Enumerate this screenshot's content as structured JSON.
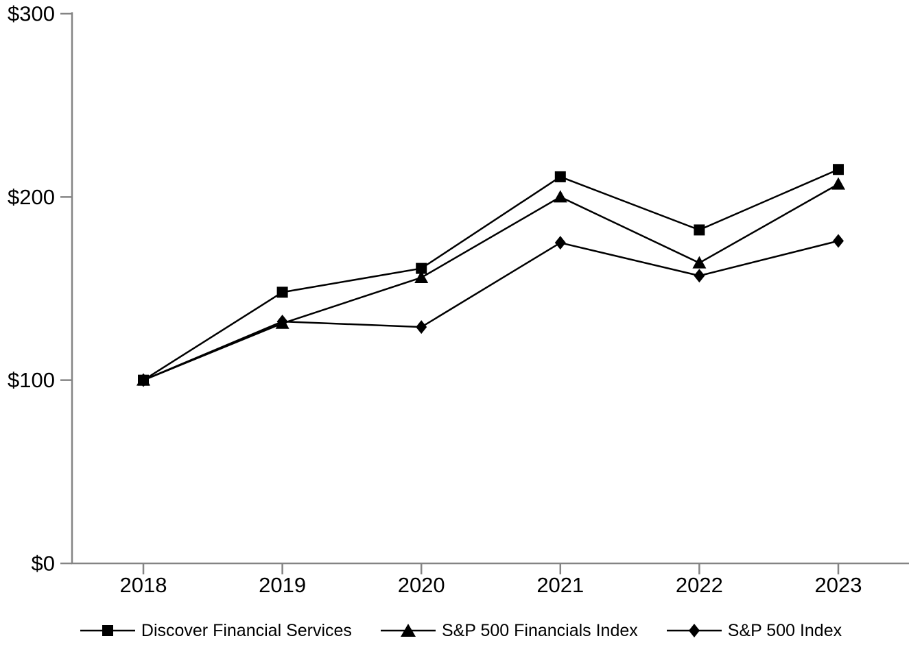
{
  "page": {
    "background": "#ffffff",
    "text_color": "#000000"
  },
  "chart_data": {
    "type": "line",
    "title": "",
    "x_labels": [
      "2018",
      "2019",
      "2020",
      "2021",
      "2022",
      "2023"
    ],
    "y_ticks": [
      0,
      100,
      200,
      300
    ],
    "y_tick_labels": [
      "$0",
      "$100",
      "$200",
      "$300"
    ],
    "ylim": [
      0,
      300
    ],
    "grid": false,
    "legend_position": "bottom",
    "axis_color": "#848484",
    "text_color": "#000000",
    "line_color": "#000000",
    "series": [
      {
        "name": "Discover Financial Services",
        "marker": "square",
        "color": "#000000",
        "values": [
          100,
          148,
          161,
          211,
          182,
          215
        ]
      },
      {
        "name": "S&P 500 Financials Index",
        "marker": "triangle",
        "color": "#000000",
        "values": [
          100,
          131,
          156,
          200,
          164,
          207
        ]
      },
      {
        "name": "S&P 500 Index",
        "marker": "diamond",
        "color": "#000000",
        "values": [
          100,
          132,
          129,
          175,
          157,
          176
        ]
      }
    ]
  }
}
